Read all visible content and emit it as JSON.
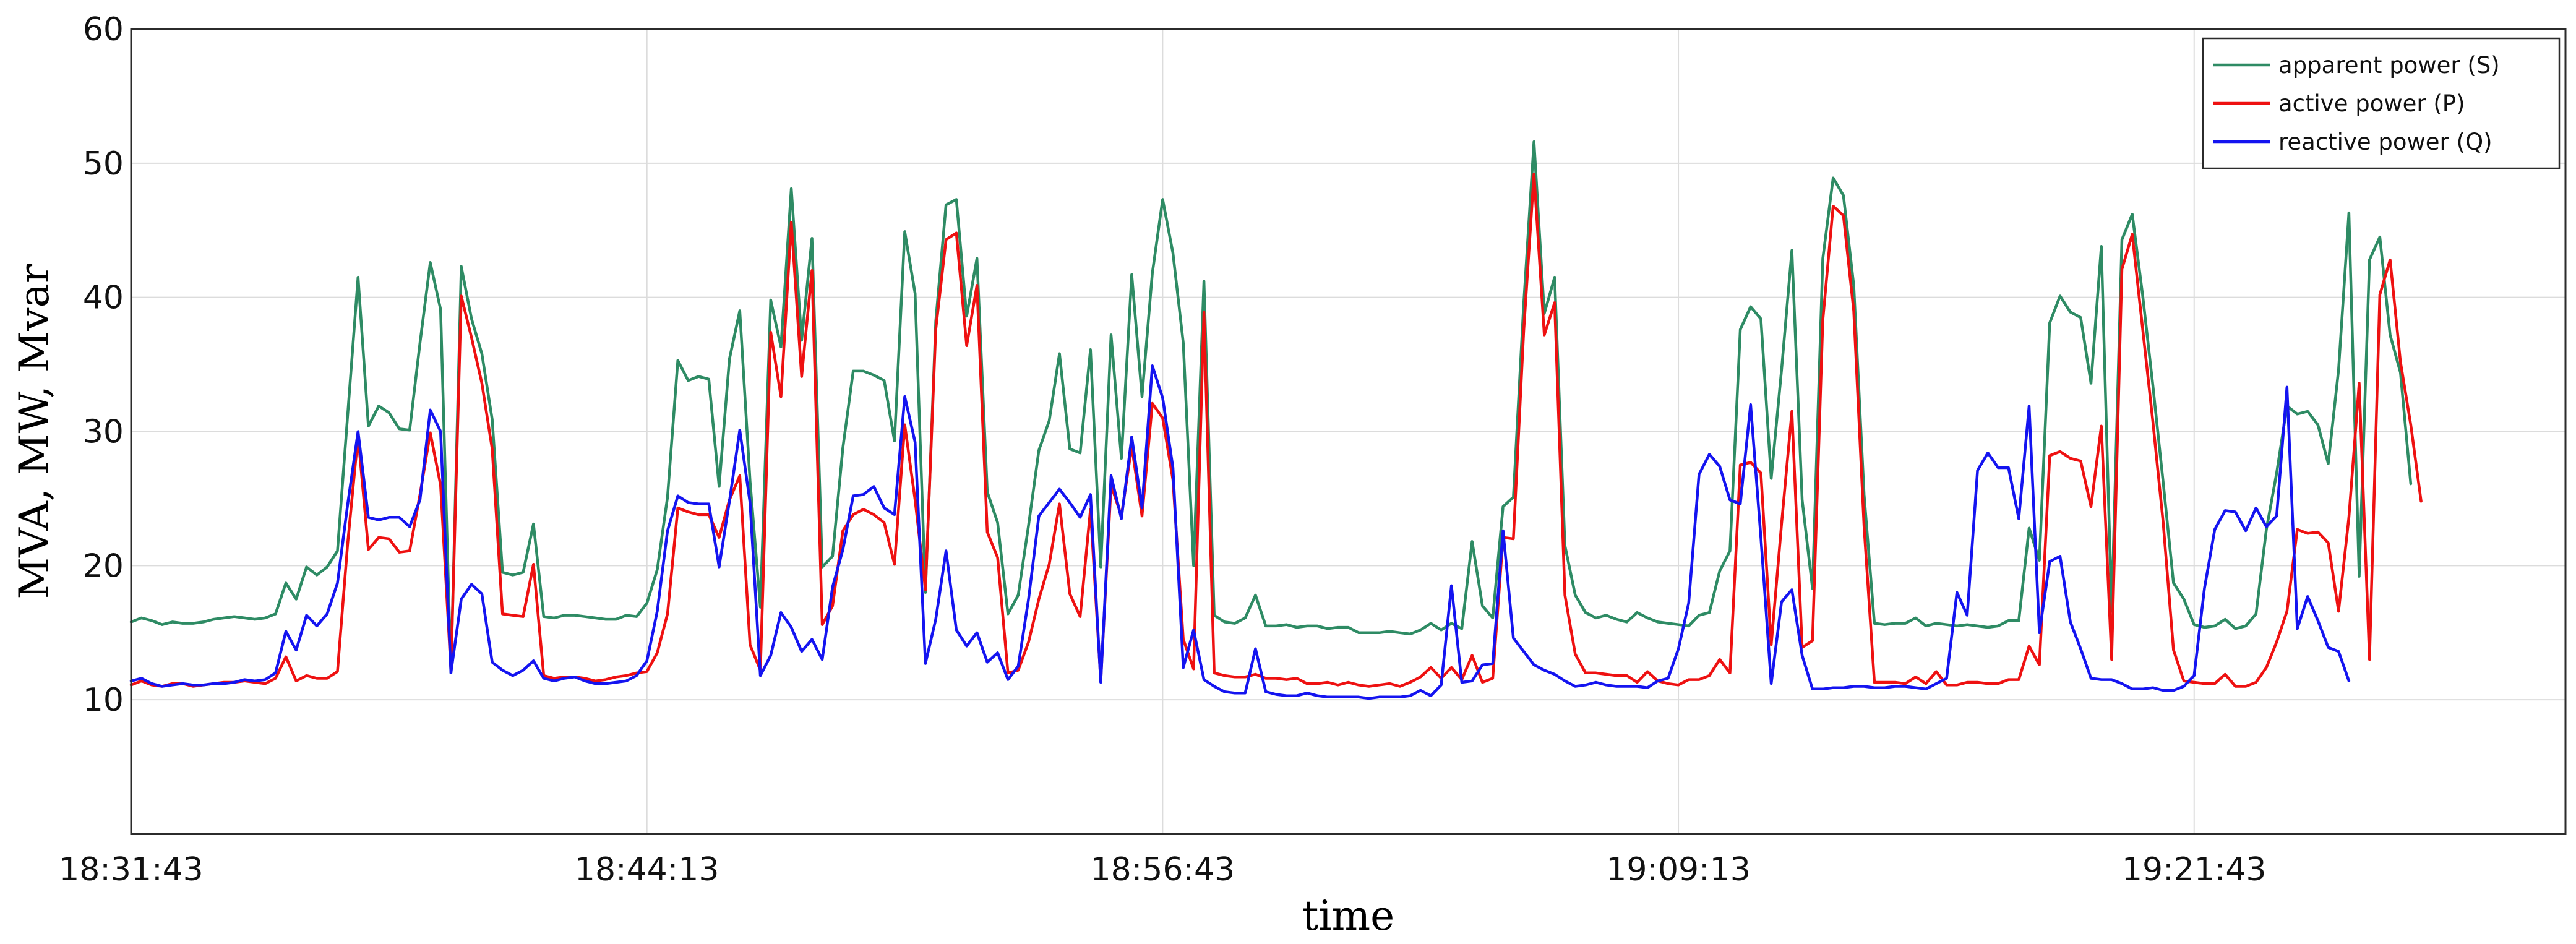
{
  "chart_data": {
    "type": "line",
    "title": "",
    "xlabel": "time",
    "ylabel": "MVA, MW, Mvar",
    "ylim": [
      0,
      60
    ],
    "yticks": [
      10,
      20,
      30,
      40,
      50,
      60
    ],
    "xlim": [
      "18:31:43",
      "19:30:43"
    ],
    "xticks": [
      "18:31:43",
      "18:44:13",
      "18:56:43",
      "19:09:13",
      "19:21:43"
    ],
    "grid": true,
    "legend_position": "top-right",
    "x_start": "18:31:43",
    "x_step_seconds": 15,
    "series": [
      {
        "name": "apparent power (S)",
        "color": "#2e8b64",
        "values": [
          15.8,
          16.1,
          15.9,
          15.6,
          15.8,
          15.7,
          15.7,
          15.8,
          16,
          16.1,
          16.2,
          16.1,
          16,
          16.1,
          16.4,
          18.7,
          17.5,
          19.9,
          19.3,
          19.9,
          21.1,
          31.3,
          41.5,
          30.4,
          31.9,
          31.4,
          30.2,
          30.1,
          36.6,
          42.6,
          39.1,
          12,
          42.3,
          38.4,
          35.8,
          30.9,
          19.5,
          19.3,
          19.5,
          23.1,
          16.2,
          16.1,
          16.3,
          16.3,
          16.2,
          16.1,
          16,
          16,
          16.3,
          16.2,
          17.2,
          19.7,
          25.1,
          35.3,
          33.8,
          34.1,
          33.9,
          25.9,
          35.4,
          39,
          26.3,
          16.9,
          39.8,
          36.3,
          48.1,
          36.8,
          44.4,
          19.9,
          20.7,
          28.8,
          34.5,
          34.5,
          34.2,
          33.8,
          29.3,
          44.9,
          40.3,
          18,
          38.2,
          46.9,
          47.3,
          38.6,
          42.9,
          25.5,
          23.2,
          16.4,
          17.8,
          23,
          28.6,
          30.8,
          35.8,
          28.7,
          28.4,
          36.1,
          19.9,
          37.2,
          28,
          41.7,
          32.6,
          41.8,
          47.3,
          43.3,
          36.6,
          20,
          41.2,
          16.3,
          15.8,
          15.7,
          16.1,
          17.8,
          15.5,
          15.5,
          15.6,
          15.4,
          15.5,
          15.5,
          15.3,
          15.4,
          15.4,
          15,
          15,
          15,
          15.1,
          15,
          14.9,
          15.2,
          15.7,
          15.2,
          15.7,
          15.3,
          21.8,
          17,
          16.1,
          24.4,
          25.1,
          39.5,
          51.6,
          38.8,
          41.5,
          21.5,
          17.8,
          16.5,
          16.1,
          16.3,
          16,
          15.8,
          16.5,
          16.1,
          15.8,
          15.7,
          15.6,
          15.5,
          16.3,
          16.5,
          19.6,
          21.1,
          37.6,
          39.3,
          38.4,
          26.5,
          34.6,
          43.5,
          24.9,
          18.3,
          42.9,
          48.9,
          47.6,
          40.9,
          25.3,
          15.7,
          15.6,
          15.7,
          15.7,
          16.1,
          15.5,
          15.7,
          15.6,
          15.5,
          15.6,
          15.5,
          15.4,
          15.5,
          15.9,
          15.9,
          22.8,
          20.4,
          38.1,
          40.1,
          38.9,
          38.5,
          33.6,
          43.8,
          16.6,
          44.3,
          46.2,
          40.2,
          33.4,
          26.2,
          18.7,
          17.5,
          15.6,
          15.4,
          15.5,
          16,
          15.3,
          15.5,
          16.4,
          22.7,
          26.9,
          31.9,
          31.3,
          31.5,
          30.5,
          27.6,
          34.6,
          46.3,
          19.2,
          42.8,
          44.5,
          37.2,
          34.4,
          26.1
        ]
      },
      {
        "name": "active power (P)",
        "color": "#ee1111",
        "values": [
          11.1,
          11.4,
          11.1,
          11,
          11.2,
          11.2,
          11,
          11.1,
          11.2,
          11.3,
          11.3,
          11.4,
          11.3,
          11.2,
          11.6,
          13.2,
          11.4,
          11.8,
          11.6,
          11.6,
          12.1,
          21.7,
          29.7,
          21.2,
          22.1,
          22,
          21,
          21.1,
          25.3,
          29.9,
          26,
          12.2,
          40.1,
          37,
          33.6,
          28.7,
          16.4,
          16.3,
          16.2,
          20.1,
          11.8,
          11.6,
          11.7,
          11.7,
          11.6,
          11.4,
          11.5,
          11.7,
          11.8,
          12,
          12.1,
          13.5,
          16.4,
          24.3,
          24,
          23.8,
          23.8,
          22.1,
          24.9,
          26.7,
          14.1,
          12.2,
          37.4,
          32.6,
          45.6,
          34.1,
          42,
          15.6,
          17,
          22.6,
          23.8,
          24.2,
          23.8,
          23.2,
          20.1,
          30.5,
          24.9,
          18.2,
          37.6,
          44.3,
          44.8,
          36.4,
          40.9,
          22.5,
          20.6,
          12,
          12.2,
          14.3,
          17.5,
          20.1,
          24.6,
          17.9,
          16.2,
          24.2,
          11.4,
          26,
          23.7,
          28.9,
          23.7,
          32.1,
          31,
          26.4,
          14.5,
          12.3,
          38.9,
          12,
          11.8,
          11.7,
          11.7,
          11.9,
          11.6,
          11.6,
          11.5,
          11.6,
          11.2,
          11.2,
          11.3,
          11.1,
          11.3,
          11.1,
          11,
          11.1,
          11.2,
          11,
          11.3,
          11.7,
          12.4,
          11.6,
          12.4,
          11.5,
          13.3,
          11.3,
          11.6,
          22.1,
          22,
          37.5,
          49.2,
          37.2,
          39.6,
          17.8,
          13.4,
          12,
          12,
          11.9,
          11.8,
          11.8,
          11.3,
          12.1,
          11.4,
          11.2,
          11.1,
          11.5,
          11.5,
          11.8,
          13,
          12,
          27.5,
          27.7,
          26.9,
          14.1,
          23.1,
          31.5,
          13.9,
          14.4,
          38.3,
          46.8,
          46.1,
          39,
          22.9,
          11.3,
          11.3,
          11.3,
          11.2,
          11.7,
          11.2,
          12.1,
          11.1,
          11.1,
          11.3,
          11.3,
          11.2,
          11.2,
          11.5,
          11.5,
          14,
          12.6,
          28.2,
          28.5,
          28,
          27.8,
          24.4,
          30.4,
          13,
          42.1,
          44.7,
          37.7,
          30.7,
          23.2,
          13.7,
          11.4,
          11.3,
          11.2,
          11.2,
          11.9,
          11,
          11,
          11.3,
          12.4,
          14.3,
          16.6,
          22.7,
          22.4,
          22.5,
          21.7,
          16.6,
          23.6,
          33.6,
          13,
          40.2,
          42.8,
          35.2,
          30.5,
          24.8
        ]
      },
      {
        "name": "reactive power (Q)",
        "color": "#1414f0",
        "values": [
          11.4,
          11.6,
          11.2,
          11,
          11.1,
          11.2,
          11.1,
          11.1,
          11.2,
          11.2,
          11.3,
          11.5,
          11.4,
          11.5,
          12,
          15.1,
          13.7,
          16.3,
          15.5,
          16.4,
          18.7,
          24.6,
          30,
          23.6,
          23.4,
          23.6,
          23.6,
          22.9,
          24.9,
          31.6,
          30,
          12,
          17.5,
          18.6,
          17.9,
          12.8,
          12.2,
          11.8,
          12.2,
          12.9,
          11.6,
          11.4,
          11.6,
          11.7,
          11.4,
          11.2,
          11.2,
          11.3,
          11.4,
          11.8,
          12.9,
          16.6,
          22.6,
          25.2,
          24.7,
          24.6,
          24.6,
          19.9,
          24.8,
          30.1,
          24.7,
          11.8,
          13.3,
          16.5,
          15.4,
          13.6,
          14.5,
          13,
          18.4,
          21.2,
          25.2,
          25.3,
          25.9,
          24.3,
          23.8,
          32.6,
          29.2,
          12.7,
          16,
          21.1,
          15.2,
          14,
          15,
          12.8,
          13.5,
          11.5,
          12.5,
          17.5,
          23.7,
          24.7,
          25.7,
          24.7,
          23.6,
          25.3,
          11.3,
          26.7,
          23.5,
          29.6,
          24.3,
          34.9,
          32.5,
          27.3,
          12.4,
          15.2,
          11.5,
          11,
          10.6,
          10.5,
          10.5,
          13.8,
          10.6,
          10.4,
          10.3,
          10.3,
          10.5,
          10.3,
          10.2,
          10.2,
          10.2,
          10.2,
          10.1,
          10.2,
          10.2,
          10.2,
          10.3,
          10.7,
          10.3,
          11.1,
          18.5,
          11.3,
          11.4,
          12.6,
          12.7,
          22.6,
          14.6,
          13.6,
          12.6,
          12.2,
          11.9,
          11.4,
          11,
          11.1,
          11.3,
          11.1,
          11,
          11,
          11,
          10.9,
          11.4,
          11.6,
          13.8,
          17.2,
          26.8,
          28.3,
          27.4,
          24.9,
          24.6,
          32,
          22.1,
          11.2,
          17.3,
          18.2,
          13.3,
          10.8,
          10.8,
          10.9,
          10.9,
          11,
          11,
          10.9,
          10.9,
          11,
          11,
          10.9,
          10.8,
          11.2,
          11.6,
          18,
          16.3,
          27.1,
          28.4,
          27.3,
          27.3,
          23.5,
          31.9,
          15,
          20.3,
          20.7,
          15.8,
          13.8,
          11.6,
          11.5,
          11.5,
          11.2,
          10.8,
          10.8,
          10.9,
          10.7,
          10.7,
          11,
          11.8,
          18.3,
          22.7,
          24.1,
          24,
          22.6,
          24.3,
          22.9,
          23.7,
          33.3,
          15.3,
          17.7,
          15.9,
          13.9,
          13.6,
          11.4
        ]
      }
    ]
  }
}
